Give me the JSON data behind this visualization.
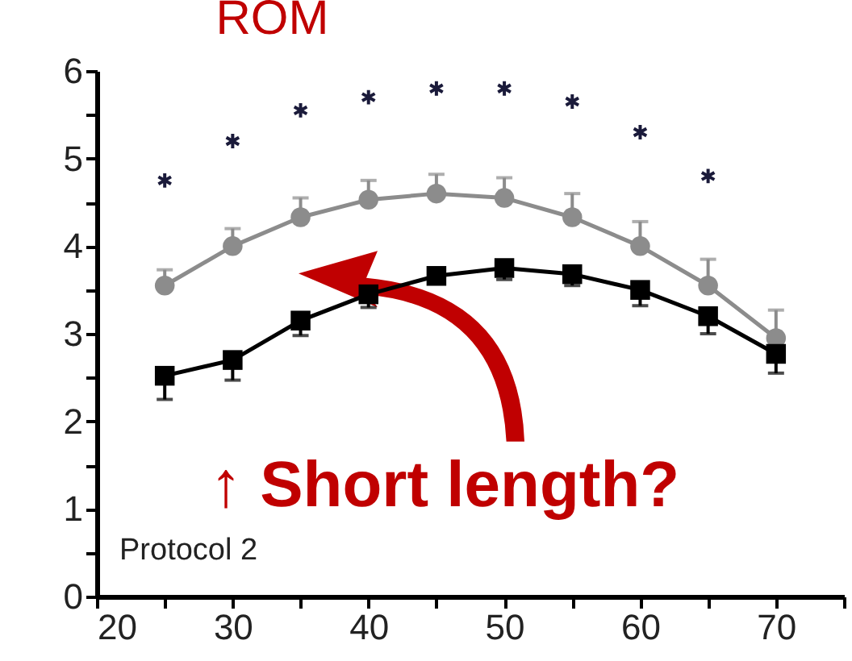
{
  "chart_data": {
    "type": "line",
    "title": "ROM",
    "x": [
      25,
      30,
      35,
      40,
      45,
      50,
      55,
      60,
      65,
      70
    ],
    "series": [
      {
        "name": null,
        "color": "#8c8c8c",
        "marker": "circle",
        "values": [
          3.55,
          4.0,
          4.33,
          4.53,
          4.6,
          4.55,
          4.33,
          4.0,
          3.55,
          2.95
        ],
        "errors": [
          [
            3.55,
            3.73
          ],
          [
            4.0,
            4.2
          ],
          [
            4.33,
            4.55
          ],
          [
            4.53,
            4.75
          ],
          [
            4.6,
            4.82
          ],
          [
            4.55,
            4.78
          ],
          [
            4.33,
            4.6
          ],
          [
            4.0,
            4.28
          ],
          [
            3.55,
            3.85
          ],
          [
            2.95,
            3.27
          ]
        ]
      },
      {
        "name": null,
        "color": "#000000",
        "marker": "square",
        "values": [
          2.52,
          2.7,
          3.15,
          3.45,
          3.66,
          3.75,
          3.68,
          3.5,
          3.2,
          2.77
        ],
        "errors": [
          [
            2.25,
            2.52
          ],
          [
            2.47,
            2.7
          ],
          [
            2.98,
            3.15
          ],
          [
            3.3,
            3.45
          ],
          [
            3.58,
            3.66
          ],
          [
            3.62,
            3.75
          ],
          [
            3.55,
            3.68
          ],
          [
            3.32,
            3.5
          ],
          [
            3.0,
            3.2
          ],
          [
            2.55,
            2.77
          ]
        ]
      },
      {
        "name": null,
        "type": "scatter",
        "color": "#1a1a3a",
        "marker": "cross",
        "x": [
          25,
          30,
          35,
          40,
          45,
          50,
          55,
          60,
          65
        ],
        "values": [
          4.75,
          5.2,
          5.55,
          5.7,
          5.8,
          5.8,
          5.65,
          5.3,
          4.8
        ]
      }
    ],
    "xlim": [
      20,
      75
    ],
    "xticks": [
      20,
      {
        "value": 25,
        "label": null
      },
      30,
      {
        "value": 35,
        "label": null
      },
      40,
      {
        "value": 45,
        "label": null
      },
      50,
      {
        "value": 55,
        "label": null
      },
      60,
      {
        "value": 65,
        "label": null
      },
      70,
      {
        "value": 75,
        "label": null
      }
    ],
    "ylim": [
      0,
      6
    ],
    "yticks": [
      0,
      {
        "value": 0.5,
        "label": null
      },
      1,
      {
        "value": 1.5,
        "label": null
      },
      2,
      {
        "value": 2.5,
        "label": null
      },
      3,
      {
        "value": 3.5,
        "label": null
      },
      4,
      {
        "value": 4.5,
        "label": null
      },
      5,
      {
        "value": 5.5,
        "label": null
      },
      6
    ],
    "grid": false,
    "annotations": [
      "↑ Short length?",
      "Protocol 2"
    ]
  }
}
